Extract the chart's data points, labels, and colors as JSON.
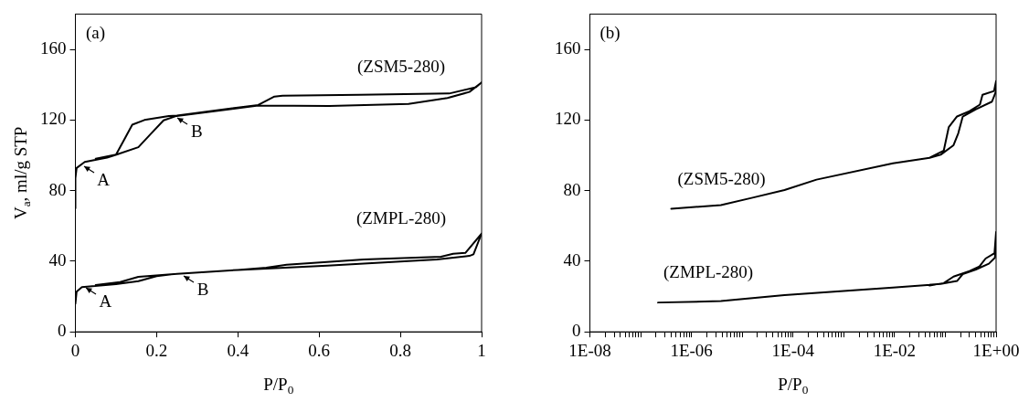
{
  "chart_data": [
    {
      "type": "line",
      "xlabel": "P/P$_{0}$",
      "ylabel": "V$_{a}$, ml/g STP",
      "xlim": [
        0,
        1
      ],
      "xticks": [
        0,
        0.2,
        0.4,
        0.6,
        0.8,
        1
      ],
      "ylim": [
        0,
        180
      ],
      "yticks": [
        0,
        40,
        80,
        120,
        160
      ],
      "legend": false,
      "marker": "none",
      "line_style": "solid",
      "series": [
        {
          "name": "(ZSM5-280)",
          "color": "#000000",
          "x": [
            0,
            0,
            0.003,
            0.023,
            0.078,
            0.101,
            0.155,
            0.186,
            0.217,
            0.249,
            0.45,
            0.625,
            0.82,
            0.916,
            0.97,
            1,
            0.986,
            0.92,
            0.7,
            0.51,
            0.49,
            0.45,
            0.25,
            0.23,
            0.17,
            0.14,
            0.12,
            0.1,
            0.05
          ],
          "values": [
            70,
            87,
            92.8,
            96.2,
            98.7,
            100.4,
            104.6,
            112.2,
            119.8,
            122.3,
            128.2,
            127.9,
            129.1,
            132.5,
            135.9,
            141.3,
            138.5,
            135,
            134.3,
            133.8,
            133.3,
            128.5,
            122.5,
            122.3,
            120,
            117.3,
            108.8,
            100.4,
            98
          ]
        },
        {
          "name": "(ZMPL-280)",
          "color": "#000000",
          "x": [
            0,
            0.003,
            0.016,
            0.1,
            0.155,
            0.2,
            0.25,
            0.4,
            0.62,
            0.89,
            0.97,
            0.98,
            1,
            0.96,
            0.93,
            0.9,
            0.71,
            0.52,
            0.47,
            0.4,
            0.25,
            0.155,
            0.11,
            0.05
          ],
          "values": [
            16,
            22.8,
            25.3,
            27,
            28.7,
            31.5,
            32.9,
            35.1,
            37.5,
            41,
            43,
            43.9,
            55.7,
            44.7,
            44.2,
            42.5,
            41,
            38,
            36.3,
            35.1,
            32.9,
            31.2,
            28.2,
            26.5
          ]
        }
      ],
      "annotations": [
        "(a)",
        {
          "text": "A",
          "x": 0.015,
          "y": 95
        },
        {
          "text": "B",
          "x": 0.245,
          "y": 122
        },
        {
          "text": "A",
          "x": 0.02,
          "y": 26
        },
        {
          "text": "B",
          "x": 0.26,
          "y": 32.5
        }
      ]
    },
    {
      "type": "line",
      "xlabel": "P/P$_{0}$",
      "log": "x",
      "xlim": [
        1e-08,
        1
      ],
      "ylim": [
        0,
        180
      ],
      "yticks": [
        0,
        40,
        80,
        120,
        160
      ],
      "legend": false,
      "marker": "none",
      "line_style": "solid",
      "xticks": [
        {
          "value": 1e-08,
          "label": "1E-08"
        },
        {
          "value": 2e-08,
          "label": null
        },
        {
          "value": 3e-08,
          "label": null
        },
        {
          "value": 4e-08,
          "label": null
        },
        {
          "value": 5e-08,
          "label": null
        },
        {
          "value": 6e-08,
          "label": null
        },
        {
          "value": 7e-08,
          "label": null
        },
        {
          "value": 8e-08,
          "label": null
        },
        {
          "value": 9e-08,
          "label": null
        },
        {
          "value": 1e-07,
          "label": null
        },
        {
          "value": 2e-07,
          "label": null
        },
        {
          "value": 3e-07,
          "label": null
        },
        {
          "value": 4e-07,
          "label": null
        },
        {
          "value": 5e-07,
          "label": null
        },
        {
          "value": 6e-07,
          "label": null
        },
        {
          "value": 7e-07,
          "label": null
        },
        {
          "value": 8e-07,
          "label": null
        },
        {
          "value": 9e-07,
          "label": null
        },
        {
          "value": 1e-06,
          "label": "1E-06"
        },
        {
          "value": 2e-06,
          "label": null
        },
        {
          "value": 3e-06,
          "label": null
        },
        {
          "value": 4e-06,
          "label": null
        },
        {
          "value": 5e-06,
          "label": null
        },
        {
          "value": 6e-06,
          "label": null
        },
        {
          "value": 7e-06,
          "label": null
        },
        {
          "value": 8e-06,
          "label": null
        },
        {
          "value": 9e-06,
          "label": null
        },
        {
          "value": 1e-05,
          "label": null
        },
        {
          "value": 2e-05,
          "label": null
        },
        {
          "value": 3e-05,
          "label": null
        },
        {
          "value": 4e-05,
          "label": null
        },
        {
          "value": 5e-05,
          "label": null
        },
        {
          "value": 6e-05,
          "label": null
        },
        {
          "value": 7e-05,
          "label": null
        },
        {
          "value": 8e-05,
          "label": null
        },
        {
          "value": 9e-05,
          "label": null
        },
        {
          "value": 0.0001,
          "label": "1E-04"
        },
        {
          "value": 0.0002,
          "label": null
        },
        {
          "value": 0.0003,
          "label": null
        },
        {
          "value": 0.0004,
          "label": null
        },
        {
          "value": 0.0005,
          "label": null
        },
        {
          "value": 0.0006,
          "label": null
        },
        {
          "value": 0.0007,
          "label": null
        },
        {
          "value": 0.0008,
          "label": null
        },
        {
          "value": 0.0009,
          "label": null
        },
        {
          "value": 0.001,
          "label": null
        },
        {
          "value": 0.002,
          "label": null
        },
        {
          "value": 0.003,
          "label": null
        },
        {
          "value": 0.004,
          "label": null
        },
        {
          "value": 0.005,
          "label": null
        },
        {
          "value": 0.006,
          "label": null
        },
        {
          "value": 0.007,
          "label": null
        },
        {
          "value": 0.008,
          "label": null
        },
        {
          "value": 0.009,
          "label": null
        },
        {
          "value": 0.01,
          "label": "1E-02"
        },
        {
          "value": 0.02,
          "label": null
        },
        {
          "value": 0.03,
          "label": null
        },
        {
          "value": 0.04,
          "label": null
        },
        {
          "value": 0.05,
          "label": null
        },
        {
          "value": 0.06,
          "label": null
        },
        {
          "value": 0.07,
          "label": null
        },
        {
          "value": 0.08,
          "label": null
        },
        {
          "value": 0.09,
          "label": null
        },
        {
          "value": 0.1,
          "label": null
        },
        {
          "value": 0.2,
          "label": null
        },
        {
          "value": 0.3,
          "label": null
        },
        {
          "value": 0.4,
          "label": null
        },
        {
          "value": 0.5,
          "label": null
        },
        {
          "value": 0.6,
          "label": null
        },
        {
          "value": 0.7,
          "label": null
        },
        {
          "value": 0.8,
          "label": null
        },
        {
          "value": 0.9,
          "label": null
        },
        {
          "value": 1,
          "label": "1E+00"
        }
      ],
      "series": [
        {
          "name": "(ZSM5-280)",
          "color": "#000000",
          "x": [
            4e-07,
            3.8e-06,
            1.6e-05,
            6.8e-05,
            0.00029,
            0.0093,
            0.049,
            0.081,
            0.145,
            0.18,
            0.22,
            0.4,
            0.83,
            1,
            1,
            0.91,
            0.54,
            0.48,
            0.3,
            0.17,
            0.117,
            0.093,
            0.049
          ],
          "values": [
            69.7,
            71.8,
            76,
            80.3,
            86.2,
            95.5,
            98.6,
            100.3,
            105.7,
            112.5,
            121.9,
            126.1,
            130.4,
            136.4,
            142,
            136.4,
            134.3,
            128.7,
            125,
            122,
            116,
            102.6,
            98.6
          ]
        },
        {
          "name": "(ZMPL-280)",
          "color": "#000000",
          "x": [
            2.2e-07,
            3.8e-06,
            6.8e-05,
            0.0093,
            0.081,
            0.17,
            0.22,
            0.4,
            0.72,
            0.95,
            1,
            0.93,
            0.62,
            0.47,
            0.3,
            0.145,
            0.093,
            0.049
          ],
          "values": [
            16.6,
            17.4,
            20.8,
            25.1,
            27.1,
            28.8,
            32.7,
            35.3,
            38.6,
            42,
            56.5,
            44.6,
            41.5,
            37,
            34.4,
            31.3,
            27.6,
            26.2
          ]
        }
      ],
      "annotations": [
        "(b)"
      ]
    }
  ]
}
